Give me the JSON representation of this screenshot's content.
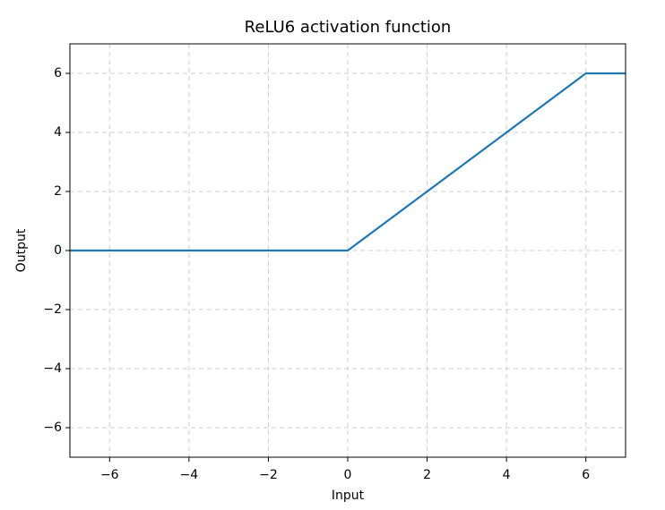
{
  "chart_data": {
    "type": "line",
    "title": "ReLU6 activation function",
    "x_label": "Input",
    "y_label": "Output",
    "x": [
      -7,
      0,
      6,
      7
    ],
    "series": [
      {
        "name": "ReLU6",
        "color": "#1f77b4",
        "values": [
          0,
          0,
          6,
          6
        ]
      }
    ],
    "xlim": [
      -7,
      7
    ],
    "ylim": [
      -7,
      7
    ],
    "xticks": [
      {
        "value": -6,
        "label": "−6"
      },
      {
        "value": -4,
        "label": "−4"
      },
      {
        "value": -2,
        "label": "−2"
      },
      0,
      2,
      4,
      6
    ],
    "yticks": [
      {
        "value": -6,
        "label": "−6"
      },
      {
        "value": -4,
        "label": "−4"
      },
      {
        "value": -2,
        "label": "−2"
      },
      0,
      2,
      4,
      6
    ],
    "grid": true
  }
}
